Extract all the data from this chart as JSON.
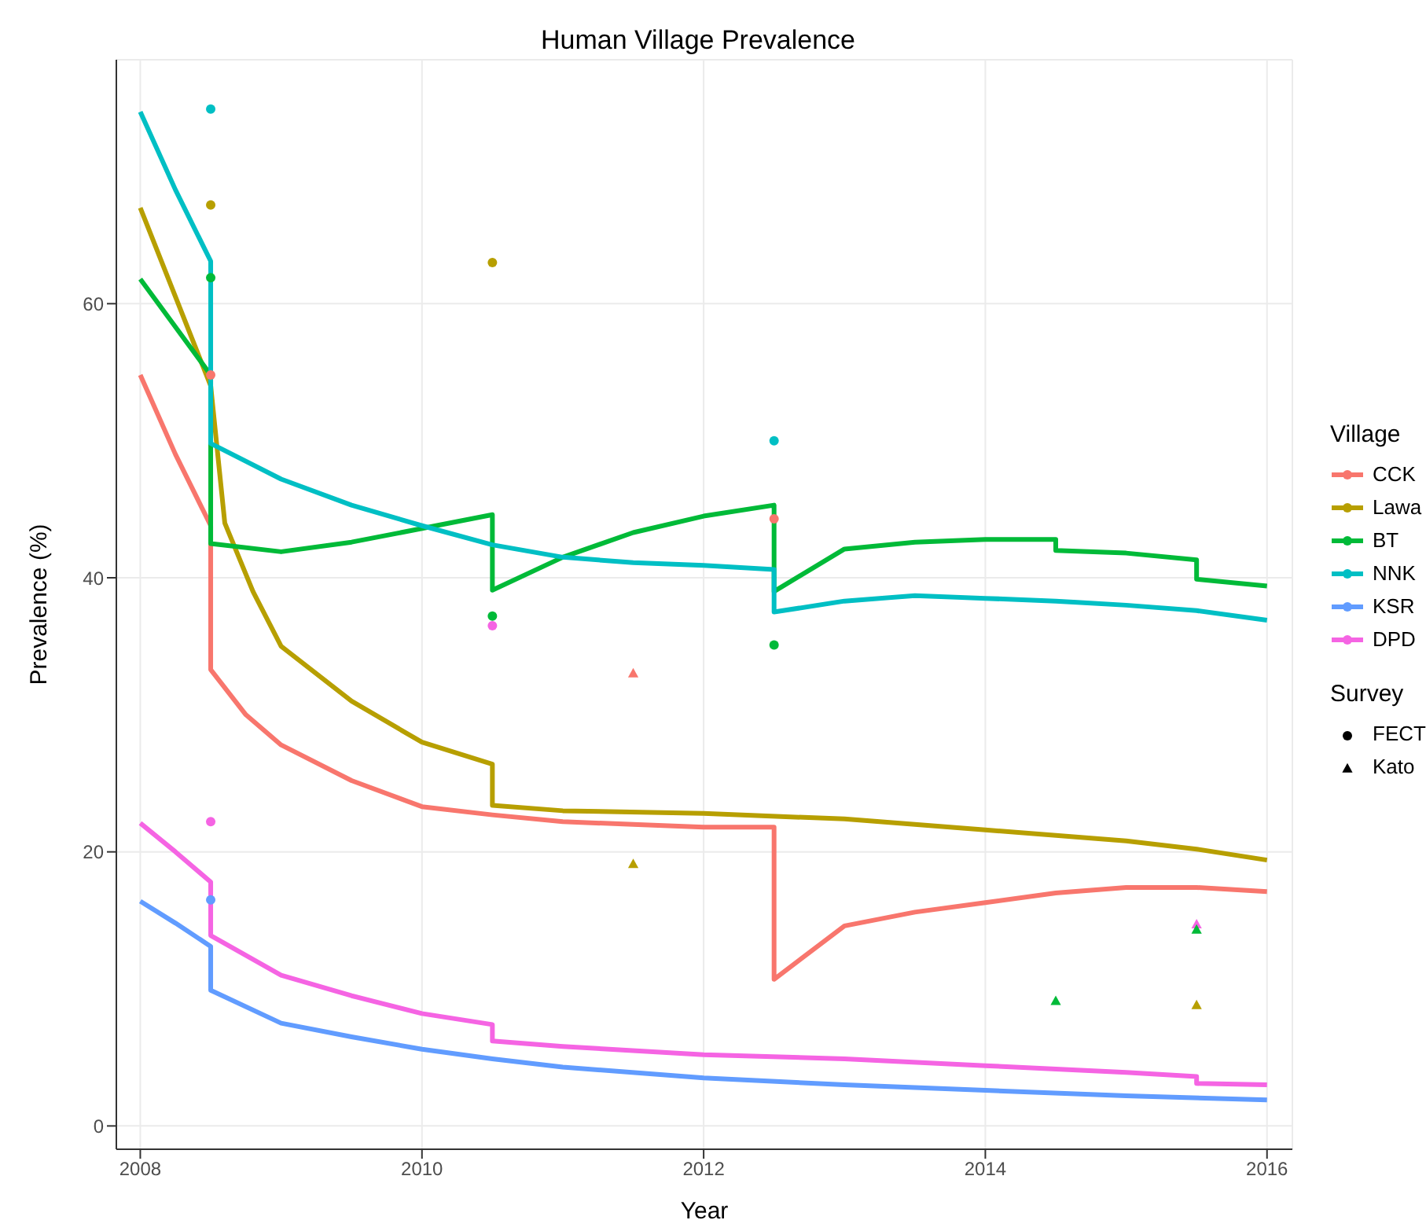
{
  "chart_data": {
    "type": "line",
    "title": "Human Village Prevalence",
    "xlabel": "Year",
    "ylabel": "Prevalence (%)",
    "legend_title": "Village",
    "annotations": [
      "Survey",
      "FECT",
      "Kato"
    ],
    "xlim": [
      2007.83,
      2016.18
    ],
    "ylim": [
      -1.7,
      77.8
    ],
    "xticks": [
      2008,
      2010,
      2012,
      2014,
      2016
    ],
    "yticks": [
      0,
      20,
      40,
      60
    ],
    "grid": true,
    "legend": "right",
    "line_style": "solid",
    "marker": "none",
    "series": [
      {
        "name": "CCK",
        "color": "#f8766d",
        "x": [
          2008,
          2008.25,
          2008.5,
          2008.5,
          2008.75,
          2009,
          2009.5,
          2010,
          2010.5,
          2011,
          2011.5,
          2012,
          2012.5,
          2012.5,
          2013,
          2013.5,
          2014,
          2014.5,
          2015,
          2015.5,
          2016
        ],
        "values": [
          54.8,
          49,
          43.8,
          33.3,
          30,
          27.8,
          25.2,
          23.3,
          22.7,
          22.2,
          22,
          21.8,
          21.8,
          10.7,
          14.6,
          15.6,
          16.3,
          17,
          17.4,
          17.4,
          17.1
        ]
      },
      {
        "name": "Lawa",
        "color": "#b79f00",
        "x": [
          2008,
          2008.25,
          2008.5,
          2008.6,
          2008.8,
          2009,
          2009.5,
          2010,
          2010.5,
          2010.5,
          2011,
          2012,
          2013,
          2014,
          2015,
          2015.5,
          2016
        ],
        "values": [
          67,
          60.5,
          54,
          44,
          39,
          35,
          31,
          28,
          26.4,
          23.4,
          23,
          22.8,
          22.4,
          21.6,
          20.8,
          20.2,
          19.4
        ]
      },
      {
        "name": "BT",
        "color": "#00ba38",
        "x": [
          2008,
          2008.25,
          2008.5,
          2008.5,
          2009,
          2009.5,
          2010,
          2010.5,
          2010.5,
          2011,
          2011.5,
          2012,
          2012.5,
          2012.5,
          2013,
          2013.5,
          2014,
          2014.5,
          2014.5,
          2015,
          2015.5,
          2015.5,
          2016
        ],
        "values": [
          61.8,
          58.3,
          54.8,
          42.5,
          41.9,
          42.6,
          43.6,
          44.6,
          39.1,
          41.5,
          43.3,
          44.5,
          45.3,
          39,
          42.1,
          42.6,
          42.8,
          42.8,
          42,
          41.8,
          41.3,
          39.9,
          39.4
        ]
      },
      {
        "name": "NNK",
        "color": "#00bfc4",
        "x": [
          2008,
          2008.25,
          2008.5,
          2008.5,
          2009,
          2009.5,
          2010,
          2010.5,
          2011,
          2011.5,
          2012,
          2012.5,
          2012.5,
          2013,
          2013.5,
          2014,
          2014.5,
          2015,
          2015.5,
          2016
        ],
        "values": [
          74,
          68.3,
          63.1,
          49.8,
          47.2,
          45.3,
          43.8,
          42.4,
          41.5,
          41.1,
          40.9,
          40.6,
          37.5,
          38.3,
          38.7,
          38.5,
          38.3,
          38,
          37.6,
          36.9
        ]
      },
      {
        "name": "KSR",
        "color": "#619cff",
        "x": [
          2008,
          2008.25,
          2008.5,
          2008.5,
          2009,
          2009.5,
          2010,
          2010.5,
          2011,
          2012,
          2013,
          2014,
          2015,
          2016
        ],
        "values": [
          16.4,
          14.8,
          13.1,
          9.9,
          7.5,
          6.5,
          5.6,
          4.9,
          4.3,
          3.5,
          3,
          2.6,
          2.2,
          1.9
        ]
      },
      {
        "name": "DPD",
        "color": "#f564e3",
        "x": [
          2008,
          2008.25,
          2008.5,
          2008.5,
          2009,
          2009.5,
          2010,
          2010.5,
          2010.5,
          2011,
          2012,
          2013,
          2014,
          2015,
          2015.5,
          2015.5,
          2016
        ],
        "values": [
          22.1,
          20,
          17.8,
          13.9,
          11,
          9.5,
          8.2,
          7.4,
          6.2,
          5.8,
          5.2,
          4.9,
          4.4,
          3.9,
          3.6,
          3.1,
          3.0
        ]
      },
      {
        "type": "scatter",
        "marker": "circle",
        "color": "#000000",
        "x": [
          2008.5,
          2008.5,
          2008.5,
          2008.5,
          2008.5,
          2008.5,
          2010.5,
          2010.5,
          2010.5,
          2012.5,
          2012.5,
          2012.5
        ],
        "values": [
          74.2,
          67.2,
          61.9,
          54.8,
          16.5,
          22.2,
          63,
          37.2,
          36.5,
          50,
          44.3,
          35.1
        ],
        "colors": [
          "#00bfc4",
          "#b79f00",
          "#00ba38",
          "#f8766d",
          "#619cff",
          "#f564e3",
          "#b79f00",
          "#00ba38",
          "#f564e3",
          "#00bfc4",
          "#f8766d",
          "#00ba38"
        ]
      },
      {
        "type": "scatter",
        "marker": "triangle",
        "color": "#000000",
        "x": [
          2011.5,
          2011.5,
          2014.5,
          2015.5,
          2015.5,
          2015.5
        ],
        "values": [
          33,
          19.1,
          9.1,
          14.7,
          14.3,
          8.8
        ],
        "colors": [
          "#f8766d",
          "#b79f00",
          "#00ba38",
          "#f564e3",
          "#00ba38",
          "#b79f00"
        ]
      }
    ]
  }
}
